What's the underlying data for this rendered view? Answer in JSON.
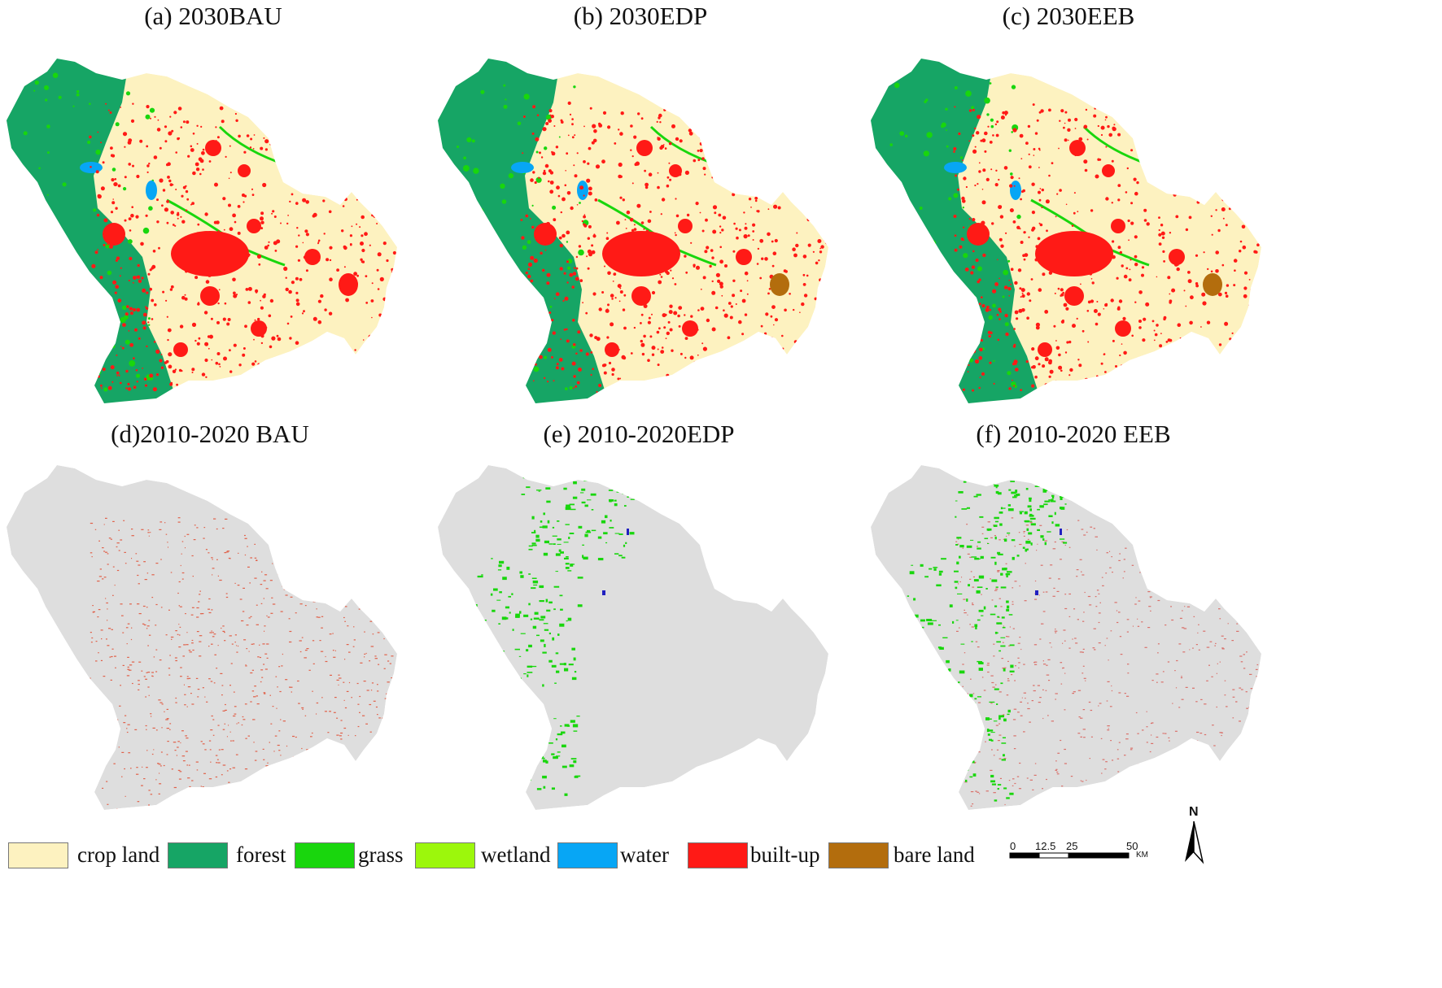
{
  "panels": [
    {
      "title": "(a) 2030BAU",
      "kind": "landuse",
      "scenario": "BAU"
    },
    {
      "title": "(b) 2030EDP",
      "kind": "landuse",
      "scenario": "EDP"
    },
    {
      "title": "(c) 2030EEB",
      "kind": "landuse",
      "scenario": "EEB"
    },
    {
      "title": "(d)2010-2020 BAU",
      "kind": "change",
      "scenario": "BAU"
    },
    {
      "title": "(e) 2010-2020EDP",
      "kind": "change",
      "scenario": "EDP"
    },
    {
      "title": "(f) 2010-2020 EEB",
      "kind": "change",
      "scenario": "EEB"
    }
  ],
  "legend": [
    {
      "label": "crop land",
      "color": "#fdf2c0"
    },
    {
      "label": "forest",
      "color": "#16a565"
    },
    {
      "label": "grass",
      "color": "#19d60d"
    },
    {
      "label": "wetland",
      "color": "#9cf70c"
    },
    {
      "label": "water",
      "color": "#07a6f5"
    },
    {
      "label": "built-up",
      "color": "#ff1a16"
    },
    {
      "label": "bare land",
      "color": "#b36d0d"
    }
  ],
  "scale_bar": {
    "ticks": [
      "0",
      "12.5",
      "25",
      "50"
    ],
    "unit": "KM"
  },
  "north_arrow": {
    "label": "N"
  },
  "colors": {
    "background_gray": "#dedede"
  }
}
